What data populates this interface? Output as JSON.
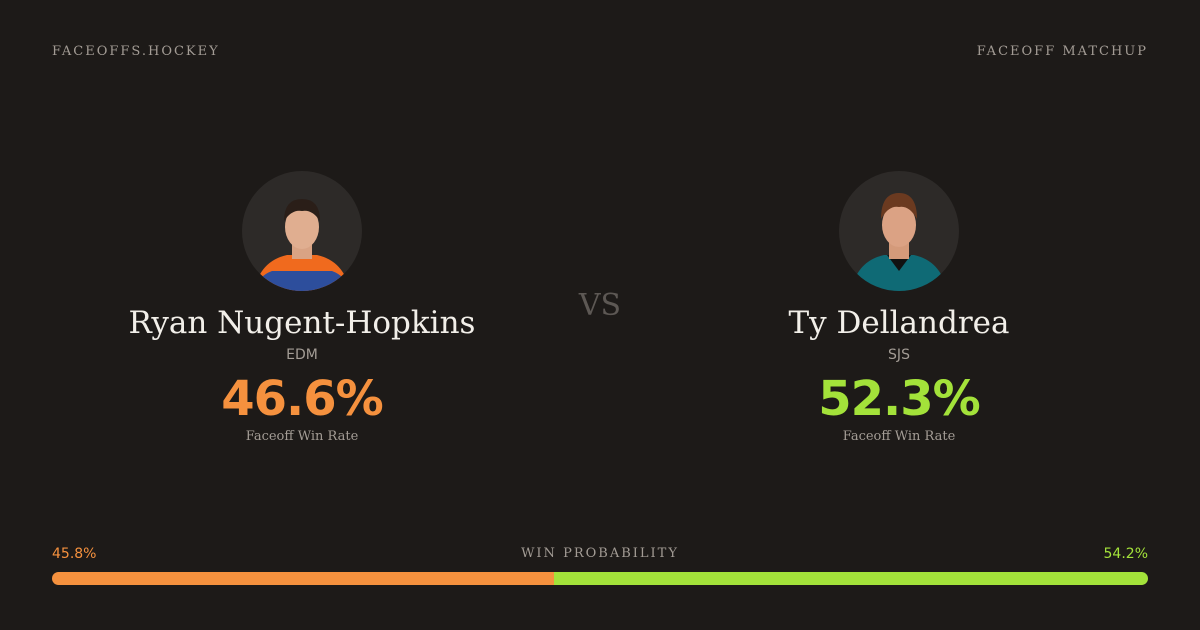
{
  "header": {
    "site": "FACEOFFS.HOCKEY",
    "label": "FACEOFF MATCHUP"
  },
  "players": [
    {
      "name": "Ryan Nugent-Hopkins",
      "team": "EDM",
      "rate": "46.6%",
      "rate_label": "Faceoff Win Rate",
      "color": "#f5913e"
    },
    {
      "name": "Ty Dellandrea",
      "team": "SJS",
      "rate": "52.3%",
      "rate_label": "Faceoff Win Rate",
      "color": "#a3e23a"
    }
  ],
  "vs": "VS",
  "win_probability": {
    "title": "WIN PROBABILITY",
    "sides": [
      {
        "value": 45.8,
        "label": "45.8%"
      },
      {
        "value": 54.2,
        "label": "54.2%"
      }
    ]
  }
}
